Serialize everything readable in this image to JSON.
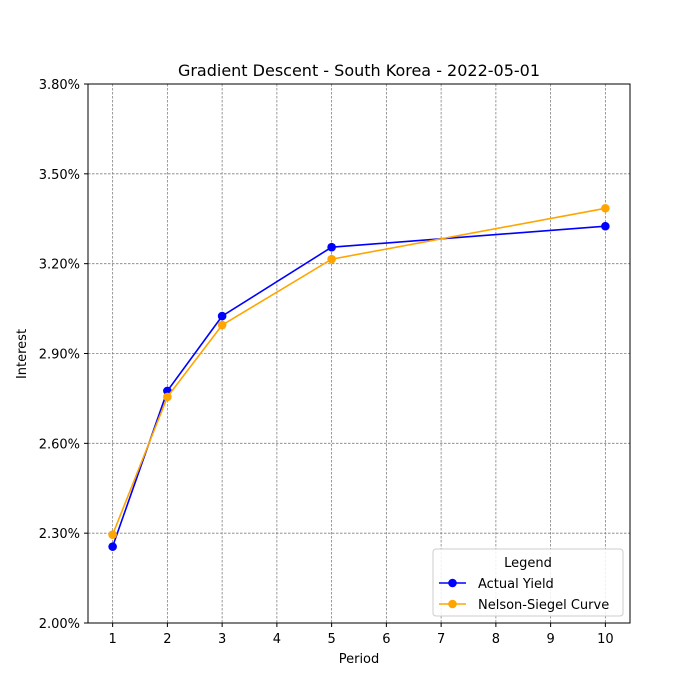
{
  "chart_data": {
    "type": "line",
    "title": "Gradient Descent - South Korea - 2022-05-01",
    "xlabel": "Period",
    "ylabel": "Interest",
    "xlim": [
      0.55,
      10.45
    ],
    "ylim": [
      2.0,
      3.8
    ],
    "x_ticks": [
      1,
      2,
      3,
      4,
      5,
      6,
      7,
      8,
      9,
      10
    ],
    "y_ticks": [
      2.0,
      2.3,
      2.6,
      2.9,
      3.2,
      3.5,
      3.8
    ],
    "y_tick_format": "percent_2dp",
    "grid": true,
    "legend": {
      "title": "Legend",
      "position": "lower-right"
    },
    "series": [
      {
        "name": "Actual Yield",
        "color": "#0000ff",
        "marker": "circle",
        "x": [
          1,
          2,
          3,
          5,
          10
        ],
        "y": [
          2.255,
          2.775,
          3.025,
          3.255,
          3.325
        ]
      },
      {
        "name": "Nelson-Siegel Curve",
        "color": "#ffa500",
        "marker": "circle",
        "x": [
          1,
          2,
          3,
          5,
          10
        ],
        "y": [
          2.295,
          2.755,
          2.995,
          3.215,
          3.385
        ]
      }
    ]
  }
}
